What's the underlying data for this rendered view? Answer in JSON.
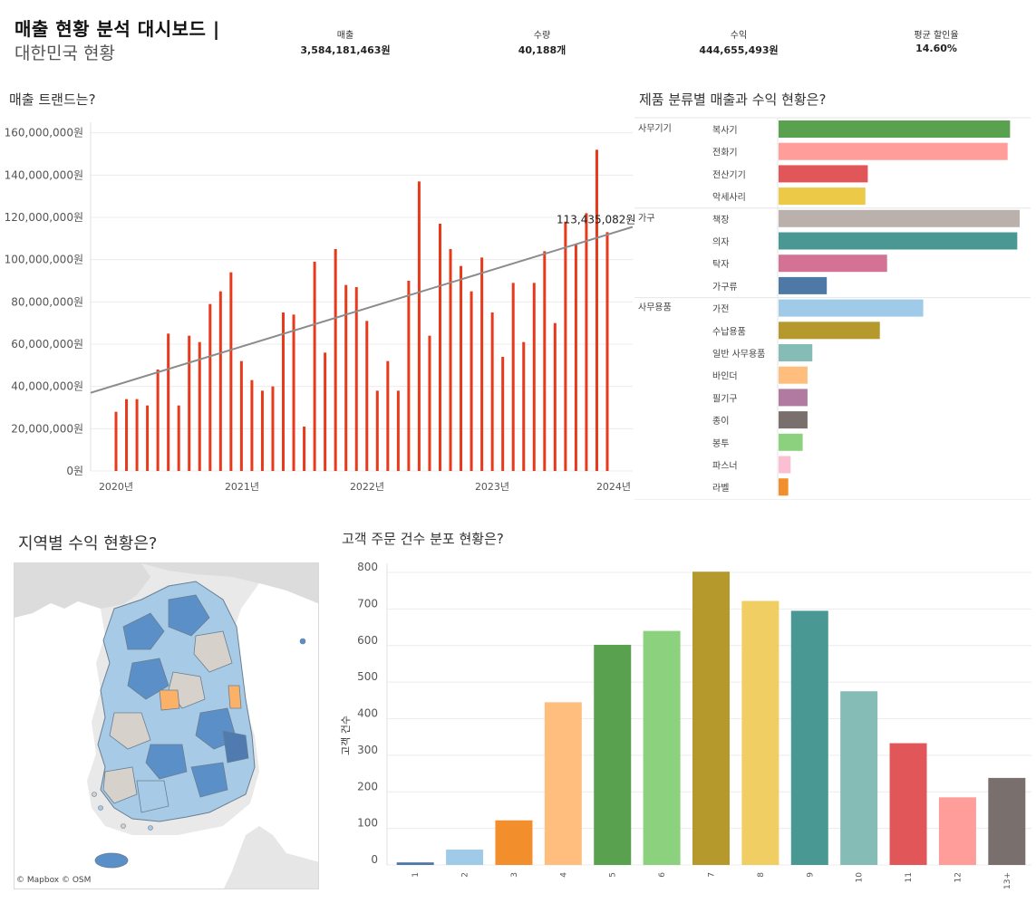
{
  "header": {
    "title": "매출 현황 분석 대시보드 |",
    "subtitle": "대한민국 현황"
  },
  "kpis": [
    {
      "label": "매출",
      "value": "3,584,181,463원"
    },
    {
      "label": "수량",
      "value": "40,188개"
    },
    {
      "label": "수익",
      "value": "444,655,493원"
    },
    {
      "label": "평균 할인율",
      "value": "14.60%"
    }
  ],
  "sections": {
    "trend": "매출 트랜드는?",
    "category": "제품 분류별 매출과 수익 현황은?",
    "region": "지역별 수익 현황은?",
    "orders": "고객 주문 건수 분포 현황은?"
  },
  "map": {
    "credit": "© Mapbox © OSM"
  },
  "colors": {
    "trend_bar": "#e8391b",
    "trend_line": "#8c8c8c",
    "map_sea": "#ffffff",
    "map_land": "#e9e9e9",
    "region_dark": "#5b8fc7",
    "region_light": "#a7cbe7",
    "region_neutral": "#d6d2cb",
    "region_orange": "#fbb168"
  },
  "chart_data": [
    {
      "type": "bar",
      "title": "매출 트랜드는?",
      "xlabel": "",
      "ylabel": "",
      "ylim": [
        0,
        165000000
      ],
      "y_ticks": [
        "0원",
        "20,000,000원",
        "40,000,000원",
        "60,000,000원",
        "80,000,000원",
        "100,000,000원",
        "120,000,000원",
        "140,000,000원",
        "160,000,000원"
      ],
      "x_ticks": [
        "2020년",
        "2021년",
        "2022년",
        "2023년",
        "2024년"
      ],
      "series": [
        {
          "name": "매출",
          "values": [
            28000000,
            34000000,
            34000000,
            31000000,
            48000000,
            65000000,
            31000000,
            64000000,
            61000000,
            79000000,
            85000000,
            94000000,
            52000000,
            43000000,
            38000000,
            40000000,
            75000000,
            74000000,
            21000000,
            99000000,
            56000000,
            105000000,
            88000000,
            87000000,
            71000000,
            38000000,
            52000000,
            38000000,
            90000000,
            137000000,
            64000000,
            117000000,
            105000000,
            97000000,
            85000000,
            101000000,
            75000000,
            54000000,
            89000000,
            61000000,
            89000000,
            104000000,
            70000000,
            118000000,
            107000000,
            122000000,
            152000000,
            113000000
          ]
        }
      ],
      "trend_line": {
        "start": 37000000,
        "end": 113000000
      },
      "annotation": "113,435,082원"
    },
    {
      "type": "bar",
      "title": "제품 분류별 매출과 수익 현황은?",
      "xlabel": "",
      "ylabel": "",
      "groups": [
        "사무기기",
        "가구",
        "사무용품"
      ],
      "items": [
        {
          "group": "사무기기",
          "name": "복사기",
          "value": 96,
          "color": "#59a14f"
        },
        {
          "group": "사무기기",
          "name": "전화기",
          "value": 95,
          "color": "#ff9d9a"
        },
        {
          "group": "사무기기",
          "name": "전산기기",
          "value": 37,
          "color": "#e15759"
        },
        {
          "group": "사무기기",
          "name": "악세사리",
          "value": 36,
          "color": "#edc948"
        },
        {
          "group": "가구",
          "name": "책장",
          "value": 100,
          "color": "#bab0ac"
        },
        {
          "group": "가구",
          "name": "의자",
          "value": 99,
          "color": "#499894"
        },
        {
          "group": "가구",
          "name": "탁자",
          "value": 45,
          "color": "#d37295"
        },
        {
          "group": "가구",
          "name": "가구류",
          "value": 20,
          "color": "#4e79a7"
        },
        {
          "group": "사무용품",
          "name": "가전",
          "value": 60,
          "color": "#a0cbe8"
        },
        {
          "group": "사무용품",
          "name": "수납용품",
          "value": 42,
          "color": "#b6992d"
        },
        {
          "group": "사무용품",
          "name": "일반 사무용품",
          "value": 14,
          "color": "#86bcb6"
        },
        {
          "group": "사무용품",
          "name": "바인더",
          "value": 12,
          "color": "#ffbe7d"
        },
        {
          "group": "사무용품",
          "name": "필기구",
          "value": 12,
          "color": "#b07aa1"
        },
        {
          "group": "사무용품",
          "name": "종이",
          "value": 12,
          "color": "#79706e"
        },
        {
          "group": "사무용품",
          "name": "봉투",
          "value": 10,
          "color": "#8cd17d"
        },
        {
          "group": "사무용품",
          "name": "파스너",
          "value": 5,
          "color": "#fabfd2"
        },
        {
          "group": "사무용품",
          "name": "라벨",
          "value": 4,
          "color": "#f28e2b"
        }
      ]
    },
    {
      "type": "bar",
      "title": "고객 주문 건수 분포 현황은?",
      "xlabel": "",
      "ylabel": "고객 건수",
      "ylim": [
        0,
        800
      ],
      "y_ticks": [
        0,
        100,
        200,
        300,
        400,
        500,
        600,
        700,
        800
      ],
      "categories": [
        "1",
        "2",
        "3",
        "4",
        "5",
        "6",
        "7",
        "8",
        "9",
        "10",
        "11",
        "12",
        "13+"
      ],
      "values": [
        7,
        42,
        122,
        445,
        602,
        640,
        802,
        722,
        695,
        475,
        333,
        185,
        238
      ],
      "colors": [
        "#4e79a7",
        "#a0cbe8",
        "#f28e2b",
        "#ffbe7d",
        "#59a14f",
        "#8cd17d",
        "#b6992d",
        "#f1ce63",
        "#499894",
        "#86bcb6",
        "#e15759",
        "#ff9d9a",
        "#79706e"
      ]
    }
  ]
}
